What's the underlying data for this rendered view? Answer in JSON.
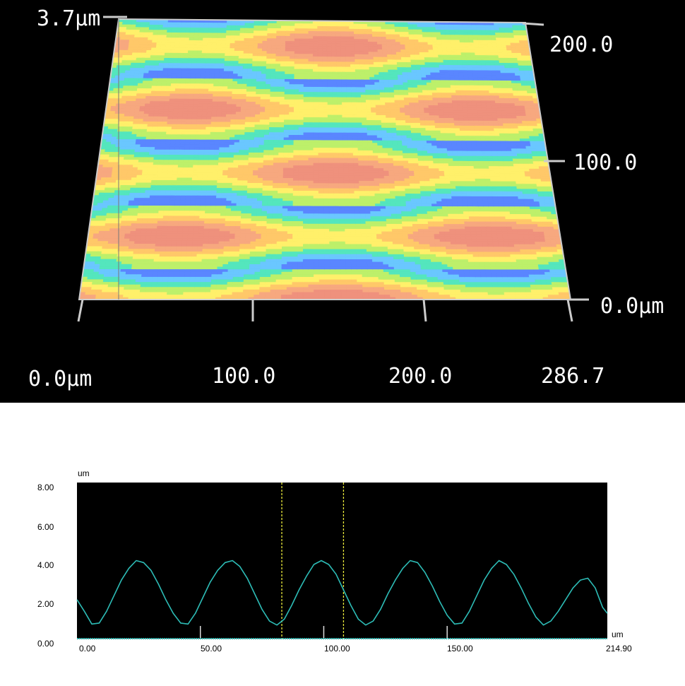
{
  "chart_data": [
    {
      "type": "heatmap",
      "title": "",
      "z_top_label": "3.7µm",
      "x_tick_labels": [
        "0.0µm",
        "100.0",
        "200.0",
        "286.7"
      ],
      "y_tick_labels": [
        "0.0µm",
        "100.0",
        "200.0"
      ],
      "x_ticks": [
        0,
        100,
        200,
        286.7
      ],
      "y_ticks": [
        0,
        100,
        200
      ],
      "xlim": [
        0,
        286.7
      ],
      "ylim": [
        0,
        220
      ],
      "zlim": [
        0,
        3.7
      ],
      "pattern": {
        "period_x": 190,
        "period_y": 50,
        "row_offset_x": 95,
        "colormap": [
          "#5a86ff",
          "#6ac7ff",
          "#54e6bd",
          "#bdf06a",
          "#fff06a",
          "#ffc869",
          "#f7a87f",
          "#ef917d"
        ]
      }
    },
    {
      "type": "line",
      "title": "",
      "ylabel": "um",
      "xlabel": "um",
      "xlim": [
        0,
        214.9
      ],
      "ylim": [
        0,
        8
      ],
      "x_tick_labels": [
        "0.00",
        "50.00",
        "100.00",
        "150.00",
        "214.90"
      ],
      "y_tick_labels": [
        "0.00",
        "2.00",
        "4.00",
        "6.00",
        "8.00"
      ],
      "x_ticks": [
        0,
        50,
        100,
        150
      ],
      "y_ticks": [
        0,
        2,
        4,
        6,
        8
      ],
      "cursors_x": [
        83,
        108
      ],
      "series": [
        {
          "color": "#2dbcb6",
          "x": [
            0,
            3,
            6,
            9,
            12,
            15,
            18,
            21,
            24,
            27,
            30,
            33,
            36,
            39,
            42,
            45,
            48,
            51,
            54,
            57,
            60,
            63,
            66,
            69,
            72,
            75,
            78,
            81,
            84,
            87,
            90,
            93,
            96,
            99,
            102,
            105,
            108,
            111,
            114,
            117,
            120,
            123,
            126,
            129,
            132,
            135,
            138,
            141,
            144,
            147,
            150,
            153,
            156,
            159,
            162,
            165,
            168,
            171,
            174,
            177,
            180,
            183,
            186,
            189,
            192,
            195,
            198,
            201,
            204,
            207,
            210,
            213,
            214.9
          ],
          "values": [
            2.0,
            1.4,
            0.75,
            0.8,
            1.4,
            2.2,
            3.0,
            3.6,
            4.0,
            3.9,
            3.5,
            2.8,
            2.0,
            1.3,
            0.8,
            0.75,
            1.3,
            2.1,
            2.9,
            3.5,
            3.9,
            4.0,
            3.7,
            3.1,
            2.3,
            1.5,
            0.9,
            0.7,
            1.0,
            1.7,
            2.5,
            3.2,
            3.8,
            4.0,
            3.8,
            3.3,
            2.5,
            1.7,
            1.0,
            0.7,
            0.9,
            1.5,
            2.3,
            3.0,
            3.6,
            4.0,
            3.9,
            3.4,
            2.7,
            1.9,
            1.2,
            0.75,
            0.8,
            1.4,
            2.2,
            3.0,
            3.6,
            4.0,
            3.8,
            3.3,
            2.6,
            1.8,
            1.1,
            0.7,
            0.9,
            1.4,
            2.0,
            2.6,
            3.0,
            3.1,
            2.6,
            1.6,
            1.3
          ]
        },
        {
          "color": "#2dbcb6",
          "x": [
            0,
            214.9
          ],
          "values": [
            0,
            0
          ]
        }
      ]
    }
  ]
}
